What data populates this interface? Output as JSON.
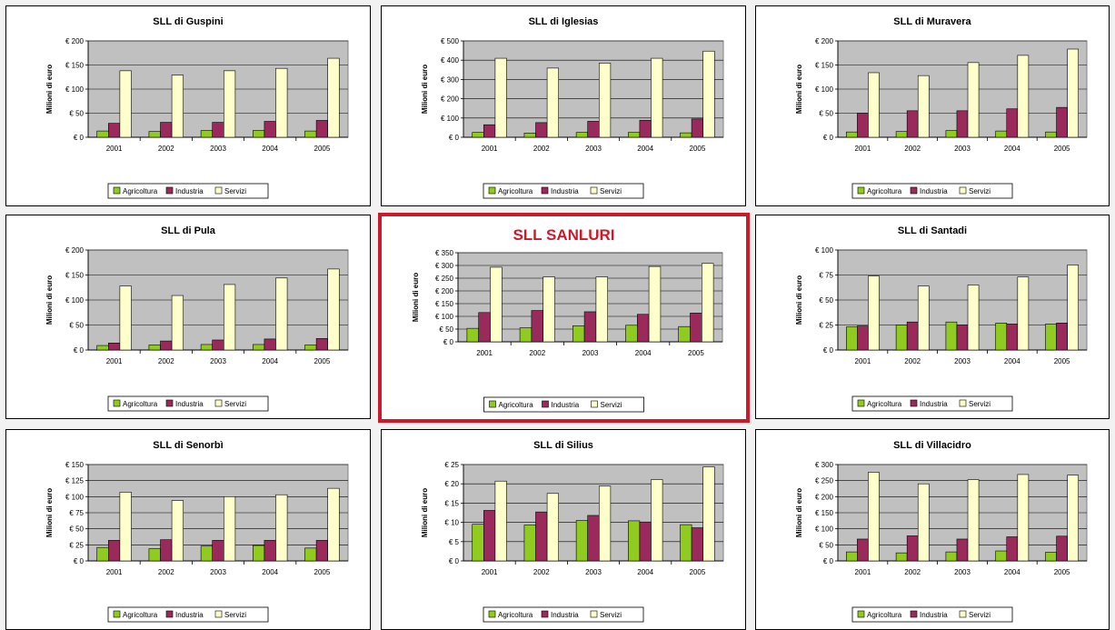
{
  "colors": {
    "Agricoltura": "#8fcc1f",
    "Industria": "#9b2a5c",
    "Servizi": "#ffffcc",
    "plot_bg": "#c0c0c0",
    "highlight": "#cc1a2a"
  },
  "chart_data": [
    {
      "type": "bar",
      "title": "SLL di Guspini",
      "ylabel": "Milioni di euro",
      "categories": [
        "2001",
        "2002",
        "2003",
        "2004",
        "2005"
      ],
      "ylim": [
        0,
        200
      ],
      "yticks": [
        0,
        50,
        100,
        150,
        200
      ],
      "ytick_labels": [
        "€ 0",
        "€ 50",
        "€ 100",
        "€ 150",
        "€ 200"
      ],
      "series": [
        {
          "name": "Agricoltura",
          "values": [
            13,
            12,
            14,
            14,
            13
          ]
        },
        {
          "name": "Industria",
          "values": [
            29,
            31,
            31,
            33,
            35
          ]
        },
        {
          "name": "Servizi",
          "values": [
            138,
            129,
            138,
            143,
            164
          ]
        }
      ],
      "legend": "bottom"
    },
    {
      "type": "bar",
      "title": "SLL di Iglesias",
      "ylabel": "Milioni di euro",
      "categories": [
        "2001",
        "2002",
        "2003",
        "2004",
        "2005"
      ],
      "ylim": [
        0,
        500
      ],
      "yticks": [
        0,
        100,
        200,
        300,
        400,
        500
      ],
      "ytick_labels": [
        "€ 0",
        "€ 100",
        "€ 200",
        "€ 300",
        "€ 400",
        "€ 500"
      ],
      "series": [
        {
          "name": "Agricoltura",
          "values": [
            25,
            22,
            25,
            25,
            23
          ]
        },
        {
          "name": "Industria",
          "values": [
            65,
            76,
            83,
            88,
            95
          ]
        },
        {
          "name": "Servizi",
          "values": [
            410,
            359,
            385,
            410,
            447
          ]
        }
      ],
      "legend": "bottom"
    },
    {
      "type": "bar",
      "title": "SLL di Muravera",
      "ylabel": "Milioni di euro",
      "categories": [
        "2001",
        "2002",
        "2003",
        "2004",
        "2005"
      ],
      "ylim": [
        0,
        200
      ],
      "yticks": [
        0,
        50,
        100,
        150,
        200
      ],
      "ytick_labels": [
        "€ 0",
        "€ 50",
        "€ 100",
        "€ 150",
        "€ 200"
      ],
      "series": [
        {
          "name": "Agricoltura",
          "values": [
            11,
            12,
            14,
            13,
            11
          ]
        },
        {
          "name": "Industria",
          "values": [
            50,
            55,
            55,
            59,
            62
          ]
        },
        {
          "name": "Servizi",
          "values": [
            134,
            128,
            155,
            170,
            183
          ]
        }
      ],
      "legend": "bottom"
    },
    {
      "type": "bar",
      "title": "SLL di Pula",
      "ylabel": "Milioni di euro",
      "categories": [
        "2001",
        "2002",
        "2003",
        "2004",
        "2005"
      ],
      "ylim": [
        0,
        200
      ],
      "yticks": [
        0,
        50,
        100,
        150,
        200
      ],
      "ytick_labels": [
        "€ 0",
        "€ 50",
        "€ 100",
        "€ 150",
        "€ 200"
      ],
      "series": [
        {
          "name": "Agricoltura",
          "values": [
            9,
            10,
            11,
            11,
            10
          ]
        },
        {
          "name": "Industria",
          "values": [
            14,
            18,
            20,
            22,
            23
          ]
        },
        {
          "name": "Servizi",
          "values": [
            128,
            109,
            131,
            144,
            162
          ]
        }
      ],
      "legend": "bottom"
    },
    {
      "type": "bar",
      "title": "SLL SANLURI",
      "ylabel": "Milioni di euro",
      "categories": [
        "2001",
        "2002",
        "2003",
        "2004",
        "2005"
      ],
      "ylim": [
        0,
        350
      ],
      "yticks": [
        0,
        50,
        100,
        150,
        200,
        250,
        300,
        350
      ],
      "ytick_labels": [
        "€ 0",
        "€ 50",
        "€ 100",
        "€ 150",
        "€ 200",
        "€ 250",
        "€ 300",
        "€ 350"
      ],
      "series": [
        {
          "name": "Agricoltura",
          "values": [
            53,
            55,
            63,
            65,
            60
          ]
        },
        {
          "name": "Industria",
          "values": [
            115,
            123,
            118,
            108,
            113
          ]
        },
        {
          "name": "Servizi",
          "values": [
            293,
            255,
            255,
            296,
            308
          ]
        }
      ],
      "legend": "bottom",
      "highlight": true
    },
    {
      "type": "bar",
      "title": "SLL di Santadi",
      "ylabel": "Milioni di euro",
      "categories": [
        "2001",
        "2002",
        "2003",
        "2004",
        "2005"
      ],
      "ylim": [
        0,
        100
      ],
      "yticks": [
        0,
        25,
        50,
        75,
        100
      ],
      "ytick_labels": [
        "€ 0",
        "€ 25",
        "€ 50",
        "€ 75",
        "€ 100"
      ],
      "series": [
        {
          "name": "Agricoltura",
          "values": [
            23,
            25,
            28,
            27,
            26
          ]
        },
        {
          "name": "Industria",
          "values": [
            24,
            28,
            25,
            26,
            27
          ]
        },
        {
          "name": "Servizi",
          "values": [
            74,
            64,
            65,
            73,
            85
          ]
        }
      ],
      "legend": "bottom"
    },
    {
      "type": "bar",
      "title": "SLL di Senorbì",
      "ylabel": "Milioni di euro",
      "categories": [
        "2001",
        "2002",
        "2003",
        "2004",
        "2005"
      ],
      "ylim": [
        0,
        150
      ],
      "yticks": [
        0,
        25,
        50,
        75,
        100,
        125,
        150
      ],
      "ytick_labels": [
        "€ 0",
        "€ 25",
        "€ 50",
        "€ 75",
        "€ 100",
        "€ 125",
        "€ 150"
      ],
      "series": [
        {
          "name": "Agricoltura",
          "values": [
            21,
            19,
            23,
            24,
            20
          ]
        },
        {
          "name": "Industria",
          "values": [
            32,
            33,
            32,
            32,
            32
          ]
        },
        {
          "name": "Servizi",
          "values": [
            107,
            94,
            100,
            103,
            113
          ]
        }
      ],
      "legend": "bottom"
    },
    {
      "type": "bar",
      "title": "SLL di Silius",
      "ylabel": "Milioni di euro",
      "categories": [
        "2001",
        "2002",
        "2003",
        "2004",
        "2005"
      ],
      "ylim": [
        0,
        25
      ],
      "yticks": [
        0,
        5,
        10,
        15,
        20,
        25
      ],
      "ytick_labels": [
        "€ 0",
        "€ 5",
        "€ 10",
        "€ 15",
        "€ 20",
        "€ 25"
      ],
      "series": [
        {
          "name": "Agricoltura",
          "values": [
            9.5,
            9.3,
            10.5,
            10.4,
            9.4
          ]
        },
        {
          "name": "Industria",
          "values": [
            13.1,
            12.7,
            11.8,
            10.1,
            8.6
          ]
        },
        {
          "name": "Servizi",
          "values": [
            20.7,
            17.5,
            19.4,
            21.1,
            24.4
          ]
        }
      ],
      "legend": "bottom"
    },
    {
      "type": "bar",
      "title": "SLL di Villacidro",
      "ylabel": "Milioni di euro",
      "categories": [
        "2001",
        "2002",
        "2003",
        "2004",
        "2005"
      ],
      "ylim": [
        0,
        300
      ],
      "yticks": [
        0,
        50,
        100,
        150,
        200,
        250,
        300
      ],
      "ytick_labels": [
        "€ 0",
        "€ 50",
        "€ 100",
        "€ 150",
        "€ 200",
        "€ 250",
        "€ 300"
      ],
      "series": [
        {
          "name": "Agricoltura",
          "values": [
            28,
            25,
            28,
            31,
            27
          ]
        },
        {
          "name": "Industria",
          "values": [
            68,
            78,
            68,
            75,
            77
          ]
        },
        {
          "name": "Servizi",
          "values": [
            276,
            240,
            253,
            269,
            267
          ]
        }
      ],
      "legend": "bottom"
    }
  ]
}
